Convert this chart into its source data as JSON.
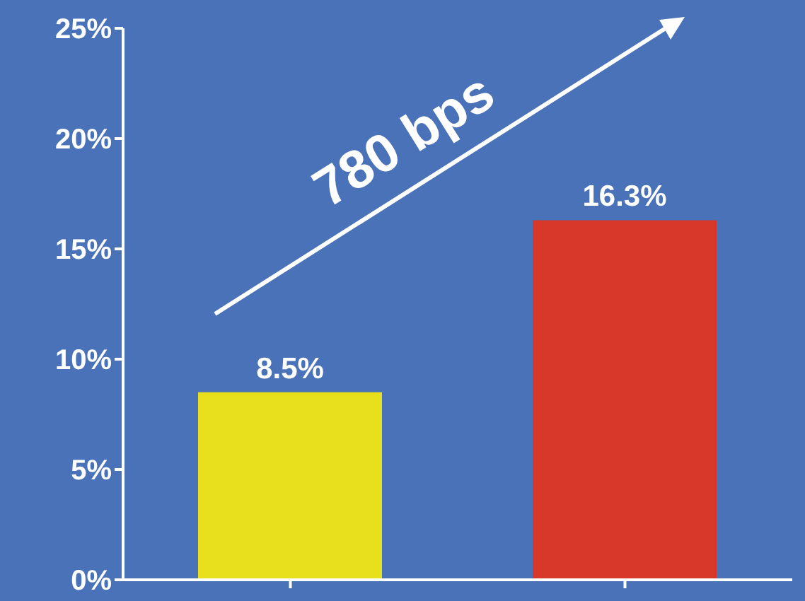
{
  "chart_data": {
    "type": "bar",
    "categories": [
      null,
      null
    ],
    "values": [
      8.5,
      16.3
    ],
    "colors": [
      "#e8e01c",
      "#d8382a"
    ],
    "value_labels": [
      "8.5%",
      "16.3%"
    ],
    "ylim": [
      0,
      25
    ],
    "yticks": [
      {
        "value": 0,
        "label": "0%"
      },
      {
        "value": 5,
        "label": "5%"
      },
      {
        "value": 10,
        "label": "10%"
      },
      {
        "value": 15,
        "label": "15%"
      },
      {
        "value": 20,
        "label": "20%"
      },
      {
        "value": 25,
        "label": "25%"
      }
    ],
    "annotations": [
      "780 bps"
    ],
    "grid": false,
    "legend": false
  }
}
